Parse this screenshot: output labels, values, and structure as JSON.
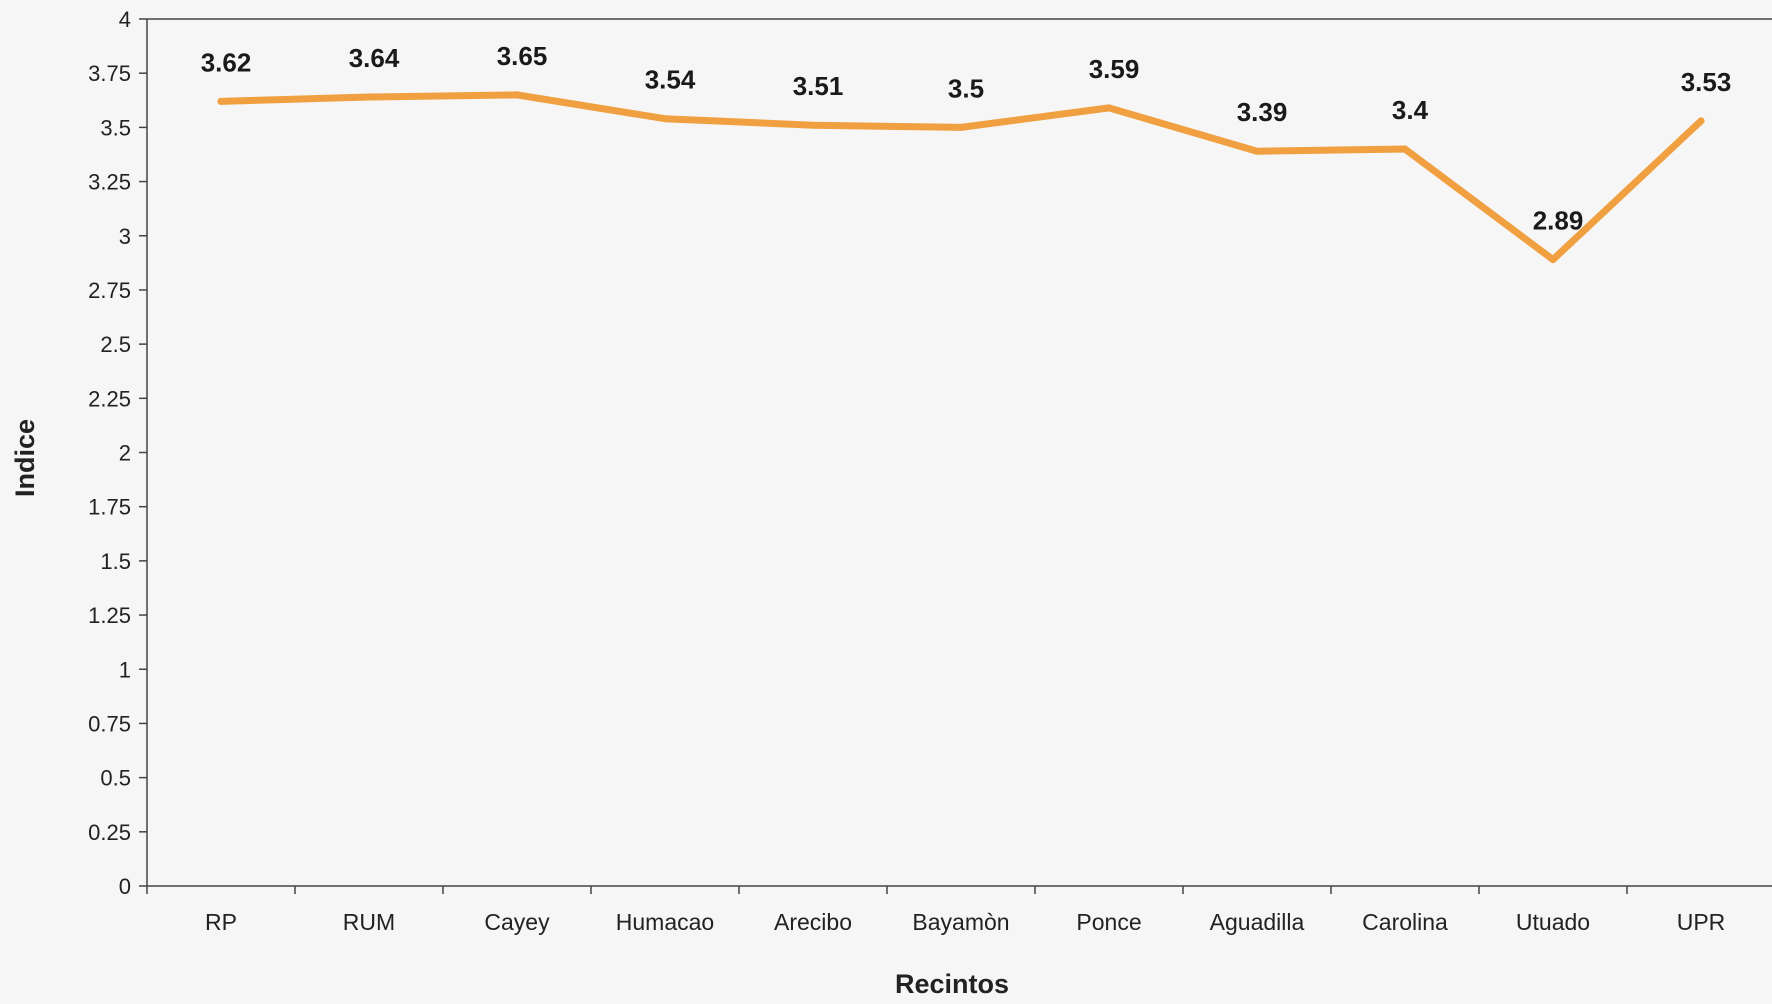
{
  "chart_data": {
    "type": "line",
    "title": "",
    "xlabel": "Recintos",
    "ylabel": "Indice",
    "categories": [
      "RP",
      "RUM",
      "Cayey",
      "Humacao",
      "Arecibo",
      "Bayamòn",
      "Ponce",
      "Aguadilla",
      "Carolina",
      "Utuado",
      "UPR"
    ],
    "series": [
      {
        "values": [
          3.62,
          3.64,
          3.65,
          3.54,
          3.51,
          3.5,
          3.59,
          3.39,
          3.4,
          2.89,
          3.53
        ],
        "labels": [
          "3.62",
          "3.64",
          "3.65",
          "3.54",
          "3.51",
          "3.5",
          "3.59",
          "3.39",
          "3.4",
          "2.89",
          "3.53"
        ],
        "color": "#f0a040"
      }
    ],
    "yticks": [
      "0",
      "0.25",
      "0.5",
      "0.75",
      "1",
      "1.25",
      "1.5",
      "1.75",
      "2",
      "2.25",
      "2.5",
      "2.75",
      "3",
      "3.25",
      "3.5",
      "3.75",
      "4"
    ],
    "ylim": [
      0,
      4
    ],
    "grid": false,
    "legend": "none",
    "colors": {
      "background": "#f6f6f6",
      "axis": "#444444",
      "text": "#222222"
    }
  }
}
